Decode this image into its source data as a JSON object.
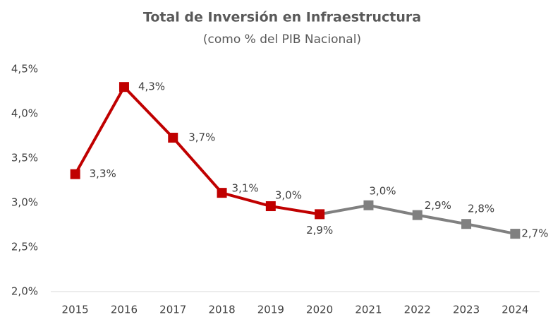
{
  "chart_data": {
    "type": "line",
    "title": "Total de Inversión en Infraestructura",
    "subtitle": "(como % del PIB Nacional)",
    "categories": [
      "2015",
      "2016",
      "2017",
      "2018",
      "2019",
      "2020",
      "2021",
      "2022",
      "2023",
      "2024"
    ],
    "series": [
      {
        "values": [
          3.32,
          4.3,
          3.73,
          3.11,
          2.96,
          2.87,
          2.97,
          2.86,
          2.76,
          2.65
        ],
        "value_labels": [
          "3,3%",
          "4,3%",
          "3,7%",
          "3,1%",
          "3,0%",
          "2,9%",
          "3,0%",
          "2,9%",
          "2,8%",
          "2,7%"
        ],
        "colors": [
          "#c00000",
          "#c00000",
          "#c00000",
          "#c00000",
          "#c00000",
          "#c00000",
          "#808080",
          "#808080",
          "#808080",
          "#808080"
        ]
      }
    ],
    "ylim": [
      2.0,
      4.5
    ],
    "yticks": [
      {
        "value": 2.0,
        "label": "2,0%"
      },
      {
        "value": 2.5,
        "label": "2,5%"
      },
      {
        "value": 3.0,
        "label": "3,0%"
      },
      {
        "value": 3.5,
        "label": "3,5%"
      },
      {
        "value": 4.0,
        "label": "4,0%"
      },
      {
        "value": 4.5,
        "label": "4,5%"
      }
    ],
    "grid": false
  }
}
